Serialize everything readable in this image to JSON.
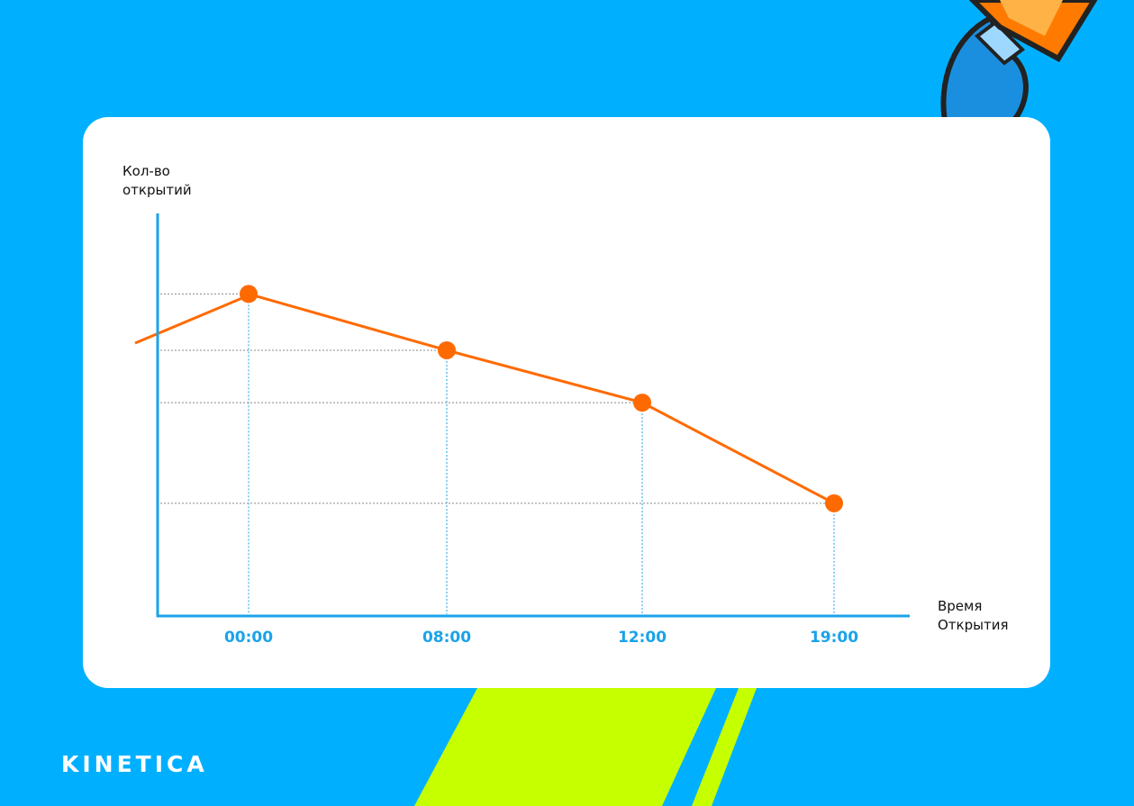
{
  "chart_data": {
    "type": "line",
    "y_label": "Кол-во открытий",
    "x_label": "Время Открытия",
    "categories": [
      "00:00",
      "08:00",
      "12:00",
      "19:00"
    ],
    "values": [
      80,
      66,
      53,
      28
    ],
    "color": "#ff6a00",
    "axis_color": "#1aa3e8",
    "ylim": [
      0,
      100
    ]
  },
  "brand": "KINETICA"
}
